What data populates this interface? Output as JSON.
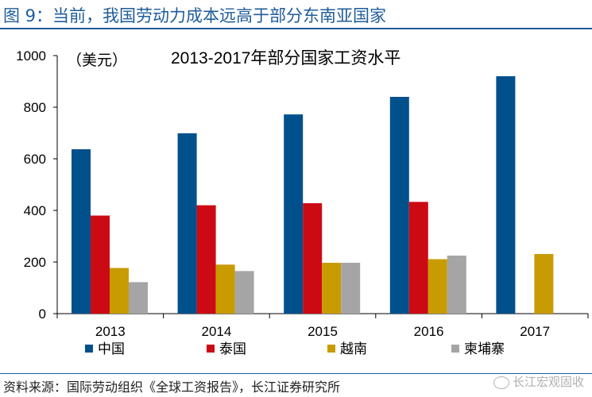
{
  "figure_title": "图 9：当前，我国劳动力成本远高于部分东南亚国家",
  "source_note": "资料来源：国际劳动组织《全球工资报告》，长江证券研究所",
  "watermark": "长江宏观固收",
  "colors": {
    "title": "#1f5c9a",
    "中国": "#00508c",
    "泰国": "#cc0a14",
    "越南": "#c89b00",
    "柬埔寨": "#a5a5a5"
  },
  "chart_data": {
    "type": "bar",
    "title": "2013-2017年部分国家工资水平",
    "unit_label": "（美元）",
    "categories": [
      "2013",
      "2014",
      "2015",
      "2016",
      "2017"
    ],
    "series": [
      {
        "name": "中国",
        "values": [
          637,
          699,
          772,
          840,
          920
        ]
      },
      {
        "name": "泰国",
        "values": [
          380,
          420,
          428,
          433,
          null
        ]
      },
      {
        "name": "越南",
        "values": [
          177,
          190,
          197,
          211,
          231
        ]
      },
      {
        "name": "柬埔寨",
        "values": [
          122,
          165,
          197,
          225,
          null
        ]
      }
    ],
    "yticks": [
      0,
      200,
      400,
      600,
      800,
      1000
    ],
    "ylim": [
      0,
      1000
    ],
    "grid": false,
    "legend_position": "bottom"
  }
}
